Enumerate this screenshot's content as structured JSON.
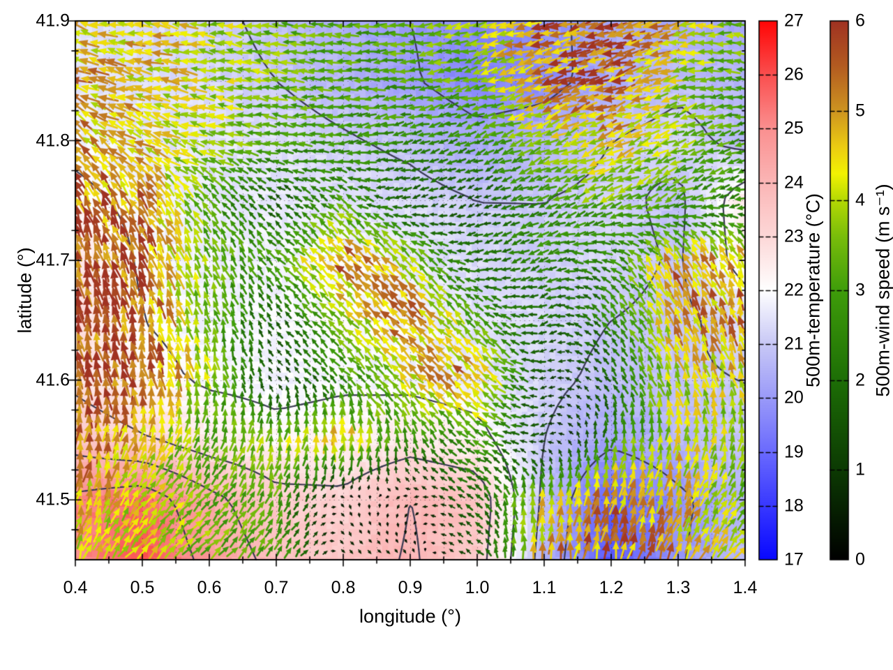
{
  "page": {
    "background": "#ffffff"
  },
  "chart_data": {
    "type": "heatmap",
    "title": "",
    "xlabel": "longitude (°)",
    "ylabel": "latitude (°)",
    "xlim": [
      0.4,
      1.4
    ],
    "ylim": [
      41.45,
      41.9
    ],
    "grid_on": true,
    "legend_position": "none",
    "xticks": {
      "values": [
        0.4,
        0.5,
        0.6,
        0.7,
        0.8,
        0.9,
        1.0,
        1.1,
        1.2,
        1.3,
        1.4
      ],
      "labels": [
        "0.4",
        "0.5",
        "0.6",
        "0.7",
        "0.8",
        "0.9",
        "1.0",
        "1.1",
        "1.2",
        "1.3",
        "1.4"
      ]
    },
    "yticks": {
      "values": [
        41.5,
        41.6,
        41.7,
        41.8,
        41.9
      ],
      "labels": [
        "41.5",
        "41.6",
        "41.7",
        "41.8",
        "41.9"
      ]
    },
    "grid_definition": {
      "lon_start": 0.4,
      "lon_step": 0.1,
      "lat_start": 41.9,
      "lat_step": -0.05,
      "cols": 11,
      "rows": 10
    },
    "temperature_C": [
      [
        21.4,
        21.3,
        21.2,
        20.8,
        20.4,
        20.0,
        19.6,
        19.8,
        20.3,
        20.4,
        20.3
      ],
      [
        21.5,
        21.4,
        21.3,
        21.0,
        20.6,
        20.1,
        19.5,
        19.7,
        20.4,
        20.8,
        20.6
      ],
      [
        21.8,
        21.6,
        21.5,
        21.4,
        21.1,
        20.8,
        20.3,
        20.5,
        21.0,
        21.3,
        20.7
      ],
      [
        22.2,
        21.8,
        21.6,
        21.6,
        21.5,
        21.3,
        21.0,
        21.0,
        21.2,
        20.8,
        22.6
      ],
      [
        22.7,
        21.9,
        21.7,
        21.8,
        21.9,
        21.6,
        21.3,
        21.1,
        21.3,
        20.9,
        22.4
      ],
      [
        23.0,
        22.0,
        21.8,
        21.9,
        22.0,
        21.8,
        21.5,
        21.3,
        21.0,
        20.8,
        21.4
      ],
      [
        22.8,
        22.2,
        21.9,
        21.8,
        21.9,
        21.8,
        21.6,
        21.2,
        20.8,
        20.9,
        21.0
      ],
      [
        23.6,
        23.1,
        22.5,
        22.2,
        22.3,
        22.6,
        22.3,
        21.0,
        20.2,
        20.6,
        21.0
      ],
      [
        25.2,
        25.6,
        24.3,
        23.3,
        23.2,
        24.0,
        23.6,
        20.8,
        18.8,
        19.8,
        20.6
      ],
      [
        25.0,
        26.0,
        24.7,
        23.7,
        23.5,
        24.1,
        23.4,
        20.6,
        18.6,
        19.9,
        20.8
      ]
    ],
    "wind_uv_ms": [
      [
        [
          -4.5,
          1.2
        ],
        [
          -4.5,
          0.8
        ],
        [
          -4.0,
          0.5
        ],
        [
          -3.4,
          0.3
        ],
        [
          -3.0,
          0.2
        ],
        [
          -3.2,
          -0.4
        ],
        [
          -3.6,
          -0.9
        ],
        [
          -5.2,
          -1.4
        ],
        [
          -5.4,
          -1.2
        ],
        [
          -4.4,
          -1.0
        ],
        [
          -3.4,
          0.6
        ]
      ],
      [
        [
          -4.6,
          1.5
        ],
        [
          -4.4,
          1.0
        ],
        [
          -4.0,
          0.6
        ],
        [
          -3.5,
          0.3
        ],
        [
          -3.1,
          0.0
        ],
        [
          -3.0,
          -0.5
        ],
        [
          -3.3,
          -1.0
        ],
        [
          -5.0,
          -1.6
        ],
        [
          -5.2,
          -1.5
        ],
        [
          -3.8,
          -1.0
        ],
        [
          -3.0,
          0.5
        ]
      ],
      [
        [
          -3.5,
          3.5
        ],
        [
          -4.2,
          1.8
        ],
        [
          -3.8,
          1.0
        ],
        [
          -3.0,
          0.4
        ],
        [
          -2.7,
          -0.3
        ],
        [
          -2.5,
          -0.6
        ],
        [
          -2.4,
          -0.9
        ],
        [
          -3.5,
          -1.5
        ],
        [
          -4.2,
          -1.8
        ],
        [
          -3.4,
          -1.3
        ],
        [
          -2.6,
          -0.8
        ]
      ],
      [
        [
          -2.2,
          5.0
        ],
        [
          -2.6,
          4.4
        ],
        [
          -2.0,
          2.4
        ],
        [
          -1.2,
          1.0
        ],
        [
          -2.4,
          1.5
        ],
        [
          -1.6,
          -0.6
        ],
        [
          -1.2,
          -0.5
        ],
        [
          -2.6,
          -1.1
        ],
        [
          -3.2,
          -1.6
        ],
        [
          -2.6,
          -1.4
        ],
        [
          -2.4,
          -0.6
        ]
      ],
      [
        [
          -1.6,
          5.5
        ],
        [
          -2.0,
          5.2
        ],
        [
          -1.2,
          3.2
        ],
        [
          -2.0,
          2.0
        ],
        [
          -3.8,
          3.8
        ],
        [
          -2.8,
          2.8
        ],
        [
          -2.0,
          -0.6
        ],
        [
          -2.4,
          -0.9
        ],
        [
          -2.2,
          1.2
        ],
        [
          -2.4,
          4.4
        ],
        [
          -2.0,
          4.6
        ]
      ],
      [
        [
          -1.2,
          5.7
        ],
        [
          -1.6,
          5.4
        ],
        [
          -0.9,
          3.2
        ],
        [
          -1.0,
          1.2
        ],
        [
          -2.6,
          2.6
        ],
        [
          -3.8,
          3.8
        ],
        [
          -2.2,
          2.2
        ],
        [
          -1.8,
          -0.7
        ],
        [
          -1.6,
          2.0
        ],
        [
          -1.8,
          4.5
        ],
        [
          -1.4,
          4.8
        ]
      ],
      [
        [
          -1.0,
          5.7
        ],
        [
          -1.3,
          5.5
        ],
        [
          -0.6,
          3.8
        ],
        [
          -0.6,
          0.8
        ],
        [
          -1.8,
          1.8
        ],
        [
          -3.0,
          3.0
        ],
        [
          -3.8,
          3.8
        ],
        [
          -1.2,
          -0.4
        ],
        [
          -1.0,
          1.4
        ],
        [
          -1.4,
          3.9
        ],
        [
          -1.0,
          4.2
        ]
      ],
      [
        [
          0.4,
          5.4
        ],
        [
          1.4,
          4.4
        ],
        [
          1.0,
          3.0
        ],
        [
          0.8,
          3.6
        ],
        [
          0.5,
          4.6
        ],
        [
          -0.6,
          2.6
        ],
        [
          -2.6,
          1.2
        ],
        [
          -1.2,
          -0.4
        ],
        [
          0.4,
          2.6
        ],
        [
          0.4,
          4.2
        ],
        [
          0.6,
          3.6
        ]
      ],
      [
        [
          0.9,
          4.6
        ],
        [
          2.4,
          3.4
        ],
        [
          2.2,
          2.6
        ],
        [
          1.2,
          2.8
        ],
        [
          0.3,
          -0.4
        ],
        [
          -0.5,
          -0.3
        ],
        [
          -1.6,
          1.2
        ],
        [
          0.5,
          4.4
        ],
        [
          0.8,
          5.0
        ],
        [
          1.5,
          4.4
        ],
        [
          2.0,
          3.0
        ]
      ],
      [
        [
          1.4,
          4.0
        ],
        [
          2.9,
          3.0
        ],
        [
          2.6,
          2.2
        ],
        [
          1.6,
          2.6
        ],
        [
          0.4,
          -0.5
        ],
        [
          0.5,
          -0.4
        ],
        [
          -1.2,
          0.8
        ],
        [
          0.5,
          4.8
        ],
        [
          1.0,
          5.2
        ],
        [
          2.0,
          4.4
        ],
        [
          2.5,
          3.0
        ]
      ]
    ],
    "contour_levels_C": [
      20,
      21,
      22,
      23,
      24,
      25
    ],
    "contour_color": "#3a3a52",
    "colorbars": [
      {
        "id": "temperature",
        "title": "500m-temperature (°C)",
        "min": 17,
        "max": 27,
        "tick_values": [
          17,
          18,
          19,
          20,
          21,
          22,
          23,
          24,
          25,
          26,
          27
        ],
        "tick_labels": [
          "17",
          "18",
          "19",
          "20",
          "21",
          "22",
          "23",
          "24",
          "25",
          "26",
          "27"
        ],
        "stops": [
          [
            17,
            "#0808ff"
          ],
          [
            18,
            "#3838ff"
          ],
          [
            19,
            "#6a6afe"
          ],
          [
            20,
            "#9a9af9"
          ],
          [
            21,
            "#c8c8f6"
          ],
          [
            22,
            "#ffffff"
          ],
          [
            23,
            "#fdd8d8"
          ],
          [
            24,
            "#fbb6b6"
          ],
          [
            25,
            "#fa9090"
          ],
          [
            26,
            "#fa4f4f"
          ],
          [
            27,
            "#ff0505"
          ]
        ]
      },
      {
        "id": "wind-speed",
        "title": "500m-wind speed (m s⁻¹)",
        "min": 0,
        "max": 6,
        "tick_values": [
          0,
          1,
          2,
          3,
          4,
          5,
          6
        ],
        "tick_labels": [
          "0",
          "1",
          "2",
          "3",
          "4",
          "5",
          "6"
        ],
        "stops": [
          [
            0,
            "#000000"
          ],
          [
            1,
            "#0c3a03"
          ],
          [
            2,
            "#1d6e06"
          ],
          [
            3,
            "#3f9d0a"
          ],
          [
            3.6,
            "#79bd0a"
          ],
          [
            4,
            "#b4d904"
          ],
          [
            4.3,
            "#f2f202"
          ],
          [
            4.6,
            "#eccc12"
          ],
          [
            5,
            "#ce9420"
          ],
          [
            5.5,
            "#b35b20"
          ],
          [
            6,
            "#a03222"
          ]
        ]
      }
    ]
  }
}
